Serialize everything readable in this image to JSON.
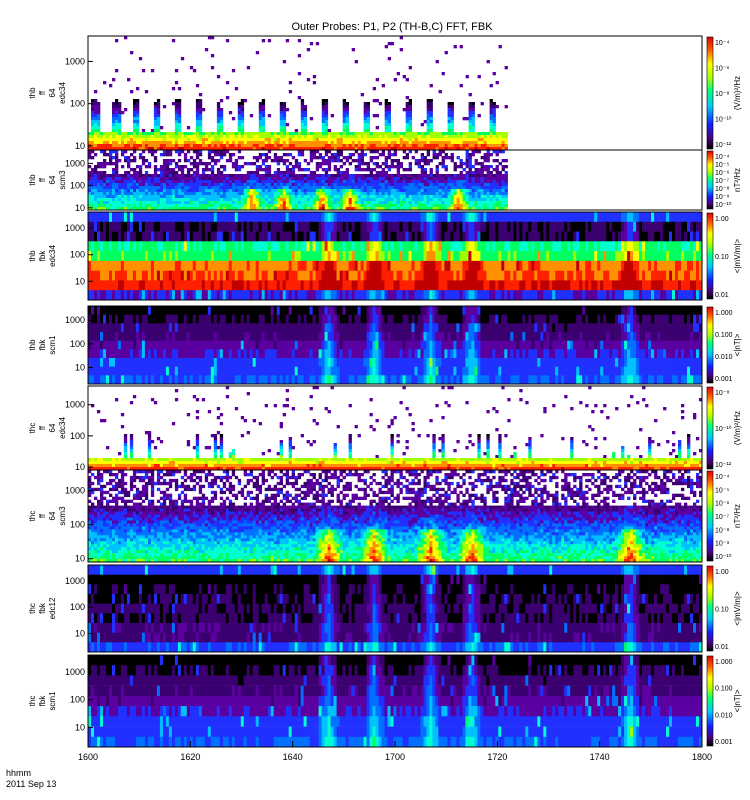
{
  "title": "Outer Probes: P1, P2 (TH-B,C) FFT, FBK",
  "footer": {
    "time_label": "hhmm",
    "date_label": "2011 Sep 13"
  },
  "chart_data": {
    "type": "heatmap",
    "x_ticks": [
      "1600",
      "1620",
      "1640",
      "1700",
      "1720",
      "1740",
      "1800"
    ],
    "x_range": [
      "16:00",
      "18:00"
    ],
    "panels": [
      {
        "labels": [
          "thb",
          "ff",
          "64",
          "edc34"
        ],
        "y_ticks": [
          "1000",
          "100",
          "10"
        ],
        "y_scale": "log",
        "y_range": [
          8,
          4000
        ],
        "data_end": "17:22",
        "colorbar": {
          "unit": "(V/m)²/Hz",
          "ticks": [
            "10⁻⁴",
            "10⁻⁶",
            "10⁻⁸",
            "10⁻¹⁰",
            "10⁻¹²"
          ]
        }
      },
      {
        "labels": [
          "thb",
          "ff",
          "64",
          "scm3"
        ],
        "y_ticks": [
          "1000",
          "100",
          "10"
        ],
        "y_scale": "log",
        "y_range": [
          8,
          4000
        ],
        "data_end": "17:22",
        "colorbar": {
          "unit": "nT²/Hz",
          "ticks": [
            "10⁻⁴",
            "10⁻⁵",
            "10⁻⁶",
            "10⁻⁷",
            "10⁻⁸",
            "10⁻⁹",
            "10⁻¹⁰"
          ]
        }
      },
      {
        "labels": [
          "thb",
          "fbk",
          "edc34"
        ],
        "y_ticks": [
          "1000",
          "100",
          "10"
        ],
        "y_scale": "log",
        "y_range": [
          2,
          4000
        ],
        "data_end": "18:00",
        "colorbar": {
          "unit": "<|mV/m|>",
          "ticks": [
            "1.00",
            "0.10",
            "0.01"
          ]
        }
      },
      {
        "labels": [
          "thb",
          "fbk",
          "scm1"
        ],
        "y_ticks": [
          "1000",
          "100",
          "10"
        ],
        "y_scale": "log",
        "y_range": [
          2,
          4000
        ],
        "data_end": "18:00",
        "colorbar": {
          "unit": "<|nT|>",
          "ticks": [
            "1.000",
            "0.100",
            "0.010",
            "0.001"
          ]
        }
      },
      {
        "labels": [
          "thc",
          "ff",
          "64",
          "edc34"
        ],
        "y_ticks": [
          "1000",
          "100",
          "10"
        ],
        "y_scale": "log",
        "y_range": [
          8,
          4000
        ],
        "data_end": "18:00",
        "colorbar": {
          "unit": "(V/m)²/Hz",
          "ticks": [
            "10⁻⁸",
            "10⁻¹⁰",
            "10⁻¹²"
          ]
        }
      },
      {
        "labels": [
          "thc",
          "ff",
          "64",
          "scm3"
        ],
        "y_ticks": [
          "1000",
          "100",
          "10"
        ],
        "y_scale": "log",
        "y_range": [
          8,
          4000
        ],
        "data_end": "18:00",
        "colorbar": {
          "unit": "nT²/Hz",
          "ticks": [
            "10⁻⁴",
            "10⁻⁵",
            "10⁻⁶",
            "10⁻⁷",
            "10⁻⁸",
            "10⁻⁹",
            "10⁻¹⁰"
          ]
        }
      },
      {
        "labels": [
          "thc",
          "fbk",
          "edc12"
        ],
        "y_ticks": [
          "1000",
          "100",
          "10"
        ],
        "y_scale": "log",
        "y_range": [
          2,
          4000
        ],
        "data_end": "18:00",
        "colorbar": {
          "unit": "<|mV/m|>",
          "ticks": [
            "1.00",
            "0.10",
            "0.01"
          ]
        }
      },
      {
        "labels": [
          "thc",
          "fbk",
          "scm1"
        ],
        "y_ticks": [
          "1000",
          "100",
          "10"
        ],
        "y_scale": "log",
        "y_range": [
          2,
          4000
        ],
        "data_end": "18:00",
        "colorbar": {
          "unit": "<|nT|>",
          "ticks": [
            "1.000",
            "0.100",
            "0.010",
            "0.001"
          ]
        }
      }
    ],
    "events": [
      "16:47",
      "16:56",
      "17:07",
      "17:15",
      "17:46"
    ]
  }
}
